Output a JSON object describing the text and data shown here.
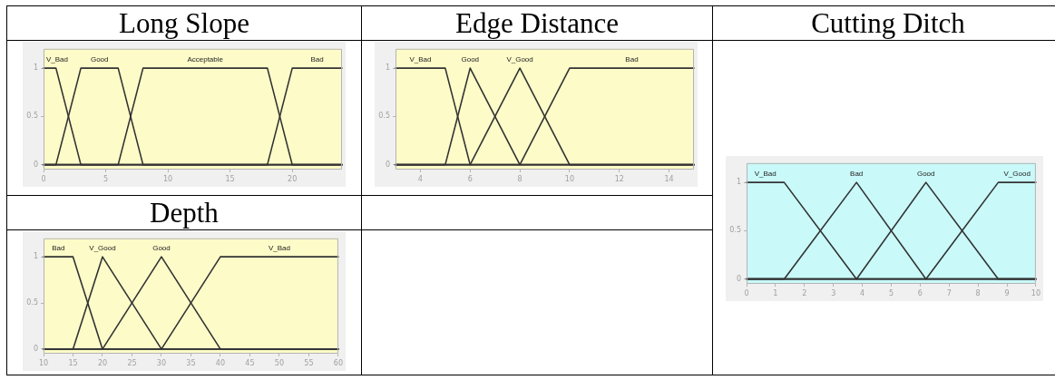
{
  "chart_data": [
    {
      "type": "line",
      "title": "Long Slope",
      "xlim": [
        0,
        24
      ],
      "xticks": [
        0,
        5,
        10,
        15,
        20
      ],
      "ylim": [
        -0.05,
        1.2
      ],
      "yticks": [
        0,
        0.5,
        1
      ],
      "series": [
        {
          "name": "V_Bad",
          "color": "#333333",
          "x": [
            0,
            1,
            3,
            24
          ],
          "values": [
            1,
            1,
            0,
            0
          ]
        },
        {
          "name": "Good",
          "color": "#333333",
          "x": [
            0,
            1,
            3,
            6,
            8,
            24
          ],
          "values": [
            0,
            0,
            1,
            1,
            0,
            0
          ]
        },
        {
          "name": "Acceptable",
          "color": "#333333",
          "x": [
            0,
            6,
            8,
            18,
            20,
            24
          ],
          "values": [
            0,
            0,
            1,
            1,
            0,
            0
          ]
        },
        {
          "name": "Bad",
          "color": "#333333",
          "x": [
            0,
            18,
            20,
            24
          ],
          "values": [
            0,
            0,
            1,
            1
          ]
        }
      ]
    },
    {
      "type": "line",
      "title": "Edge Distance",
      "xlim": [
        3,
        15
      ],
      "xticks": [
        4,
        6,
        8,
        10,
        12,
        14
      ],
      "ylim": [
        -0.05,
        1.2
      ],
      "yticks": [
        0,
        0.5,
        1
      ],
      "series": [
        {
          "name": "V_Bad",
          "color": "#333333",
          "x": [
            3,
            5,
            6,
            15
          ],
          "values": [
            1,
            1,
            0,
            0
          ]
        },
        {
          "name": "Good",
          "color": "#333333",
          "x": [
            3,
            5,
            6,
            8,
            15
          ],
          "values": [
            0,
            0,
            1,
            0,
            0
          ]
        },
        {
          "name": "V_Good",
          "color": "#333333",
          "x": [
            3,
            6,
            8,
            10,
            15
          ],
          "values": [
            0,
            0,
            1,
            0,
            0
          ]
        },
        {
          "name": "Bad",
          "color": "#333333",
          "x": [
            3,
            8,
            10,
            15
          ],
          "values": [
            0,
            0,
            1,
            1
          ]
        }
      ]
    },
    {
      "type": "line",
      "title": "Cutting Ditch",
      "xlim": [
        0,
        10
      ],
      "xticks": [
        0,
        1,
        2,
        3,
        4,
        5,
        6,
        7,
        8,
        9,
        10
      ],
      "ylim": [
        -0.05,
        1.2
      ],
      "yticks": [
        0,
        0.5,
        1
      ],
      "series": [
        {
          "name": "V_Bad",
          "color": "#333333",
          "x": [
            0,
            1.3,
            3.8,
            10
          ],
          "values": [
            1,
            1,
            0,
            0
          ]
        },
        {
          "name": "Bad",
          "color": "#333333",
          "x": [
            0,
            1.3,
            3.8,
            6.2,
            10
          ],
          "values": [
            0,
            0,
            1,
            0,
            0
          ]
        },
        {
          "name": "Good",
          "color": "#333333",
          "x": [
            0,
            3.8,
            6.2,
            8.7,
            10
          ],
          "values": [
            0,
            0,
            1,
            0,
            0
          ]
        },
        {
          "name": "V_Good",
          "color": "#333333",
          "x": [
            0,
            6.2,
            8.7,
            10
          ],
          "values": [
            0,
            0,
            1,
            1
          ]
        }
      ]
    },
    {
      "type": "line",
      "title": "Depth",
      "xlim": [
        10,
        60
      ],
      "xticks": [
        10,
        15,
        20,
        25,
        30,
        35,
        40,
        45,
        50,
        55,
        60
      ],
      "ylim": [
        -0.05,
        1.2
      ],
      "yticks": [
        0,
        0.5,
        1
      ],
      "series": [
        {
          "name": "Bad",
          "color": "#333333",
          "x": [
            10,
            15,
            20,
            60
          ],
          "values": [
            1,
            1,
            0,
            0
          ]
        },
        {
          "name": "V_Good",
          "color": "#333333",
          "x": [
            10,
            15,
            20,
            30,
            60
          ],
          "values": [
            0,
            0,
            1,
            0,
            0
          ]
        },
        {
          "name": "Good",
          "color": "#333333",
          "x": [
            10,
            20,
            30,
            40,
            60
          ],
          "values": [
            0,
            0,
            1,
            0,
            0
          ]
        },
        {
          "name": "V_Bad",
          "color": "#333333",
          "x": [
            10,
            30,
            40,
            60
          ],
          "values": [
            0,
            0,
            1,
            1
          ]
        }
      ]
    }
  ]
}
